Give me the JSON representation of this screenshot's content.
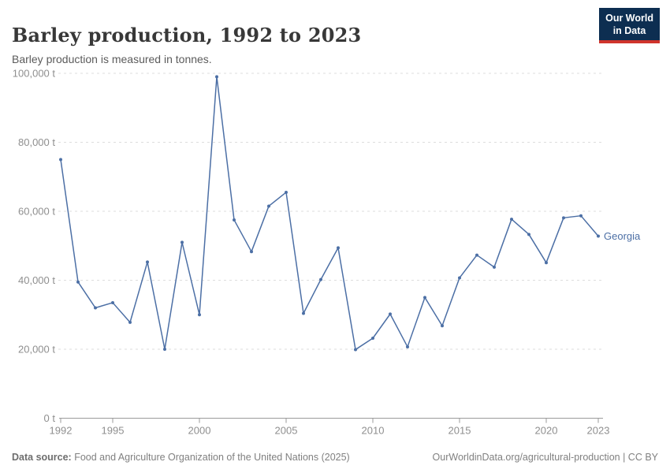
{
  "header": {
    "title": "Barley production, 1992 to 2023",
    "subtitle": "Barley production is measured in tonnes.",
    "logo": {
      "line1": "Our World",
      "line2": "in Data",
      "bg_color": "#0d2e51",
      "accent_color": "#d0342c"
    }
  },
  "chart_data": {
    "type": "line",
    "title": "Barley production, 1992 to 2023",
    "ylabel": "",
    "xlabel": "",
    "unit": "t",
    "ylim": [
      0,
      100000
    ],
    "xlim": [
      1992,
      2023
    ],
    "grid": "horizontal-dashed",
    "legend_position": "end-of-line-label",
    "yticks": [
      0,
      20000,
      40000,
      60000,
      80000,
      100000
    ],
    "ytick_labels": [
      "0 t",
      "20,000 t",
      "40,000 t",
      "60,000 t",
      "80,000 t",
      "100,000 t"
    ],
    "xticks": [
      1992,
      1995,
      2000,
      2005,
      2010,
      2015,
      2020,
      2023
    ],
    "xtick_labels": [
      "1992",
      "1995",
      "2000",
      "2005",
      "2010",
      "2015",
      "2020",
      "2023"
    ],
    "x": [
      1992,
      1993,
      1994,
      1995,
      1996,
      1997,
      1998,
      1999,
      2000,
      2001,
      2002,
      2003,
      2004,
      2005,
      2006,
      2007,
      2008,
      2009,
      2010,
      2011,
      2012,
      2013,
      2014,
      2015,
      2016,
      2017,
      2018,
      2019,
      2020,
      2021,
      2022,
      2023
    ],
    "series": [
      {
        "name": "Georgia",
        "color": "#4c6fa5",
        "values": [
          75000,
          39500,
          32000,
          33500,
          27800,
          45300,
          20000,
          51000,
          30000,
          99000,
          57500,
          48300,
          61500,
          65500,
          30400,
          40200,
          49400,
          19900,
          23200,
          30200,
          20700,
          35000,
          26800,
          40700,
          47300,
          43800,
          57700,
          53300,
          45100,
          58100,
          58700,
          52800
        ]
      }
    ],
    "colors": {
      "gridline": "#dedede",
      "axis": "#9a9a9a",
      "tick_label": "#8f8f8f"
    }
  },
  "footer": {
    "datasource_label": "Data source:",
    "datasource_text": " Food and Agriculture Organization of the United Nations (2025)",
    "link_text": "OurWorldinData.org/agricultural-production | CC BY"
  }
}
